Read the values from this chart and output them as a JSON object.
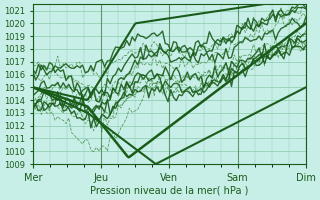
{
  "title": "",
  "xlabel": "Pression niveau de la mer( hPa )",
  "ylabel": "",
  "bg_color": "#c8eee8",
  "grid_color": "#88ccaa",
  "line_color_dark": "#1a5c1a",
  "line_color_dashed": "#2a7a2a",
  "ylim": [
    1009,
    1021.5
  ],
  "yticks": [
    1009,
    1010,
    1011,
    1012,
    1013,
    1014,
    1015,
    1016,
    1017,
    1018,
    1019,
    1020,
    1021
  ],
  "xtick_labels": [
    "Mer",
    "Jeu",
    "Ven",
    "Sam",
    "Dim"
  ],
  "xtick_positions": [
    0,
    1,
    2,
    3,
    4
  ],
  "num_days": 4,
  "num_steps": 100
}
